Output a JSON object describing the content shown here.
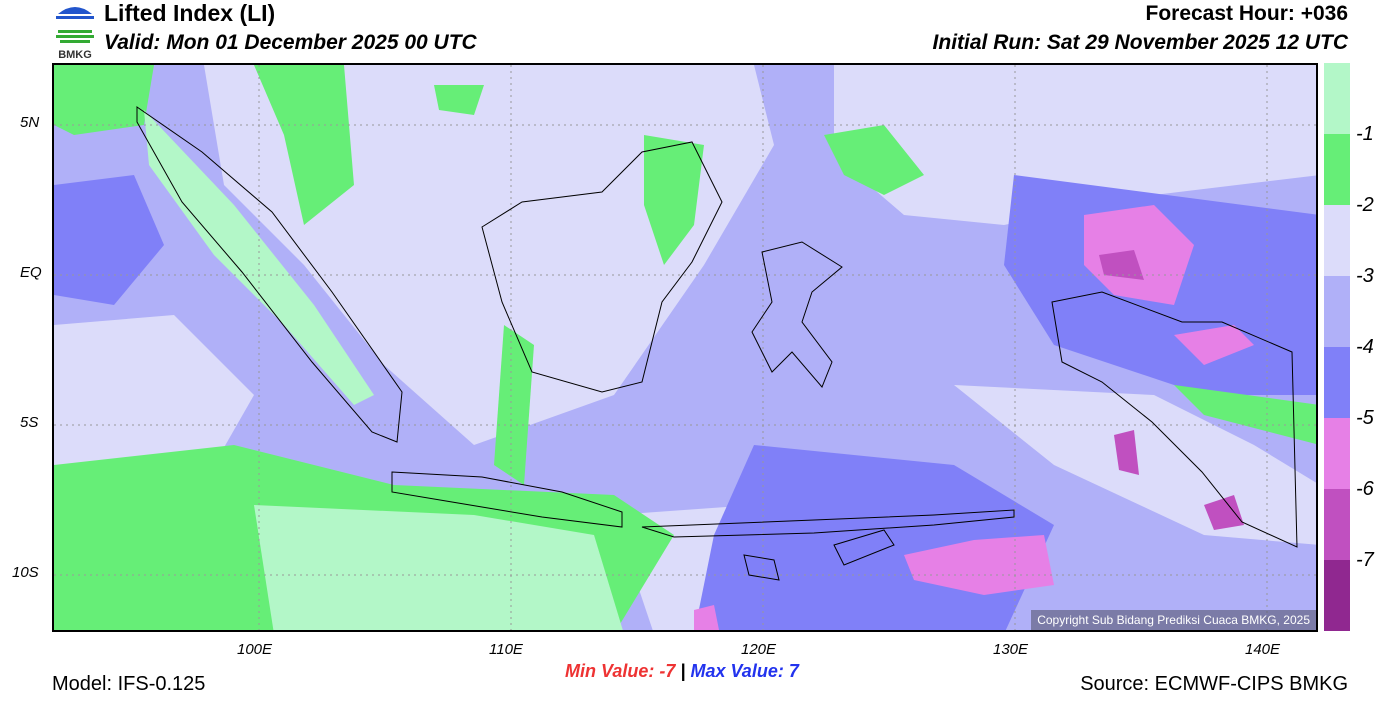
{
  "header": {
    "title": "Lifted Index (LI)",
    "valid": "Valid: Mon 01 December 2025 00 UTC",
    "forecast_hour": "Forecast Hour: +036",
    "initial_run": "Initial Run: Sat 29 November 2025 12 UTC",
    "logo_text": "BMKG"
  },
  "axes": {
    "lat": [
      "5N",
      "EQ",
      "5S",
      "10S"
    ],
    "lon": [
      "100E",
      "110E",
      "120E",
      "130E",
      "140E"
    ]
  },
  "legend": {
    "colors": [
      "#b3f7c8",
      "#66ee77",
      "#dcdcfa",
      "#b0b0f8",
      "#8080f8",
      "#e680e6",
      "#c050c0",
      "#902890"
    ],
    "labels": [
      "-1",
      "-2",
      "-3",
      "-4",
      "-5",
      "-6",
      "-7"
    ]
  },
  "footer": {
    "min_label": "Min Value:",
    "min_value": "-7",
    "sep": "|",
    "max_label": "Max Value:",
    "max_value": "7",
    "model": "Model: IFS-0.125",
    "source": "Source: ECMWF-CIPS BMKG",
    "copyright": "Copyright Sub Bidang Prediksi Cuaca BMKG, 2025"
  }
}
